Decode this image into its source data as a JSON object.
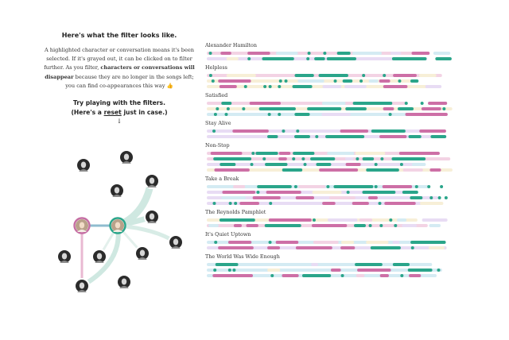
{
  "intro": {
    "heading": "Here's what the filter looks like.",
    "para_1": "A highlighted character or conversation means it's been selected. If it's grayed out, it can be clicked on to filter further. As you filter,",
    "para_bold": "characters or conversations will disappear",
    "para_2": "because they are no longer in the songs left; you can find co-appearances this way",
    "emoji": "👍",
    "try_line": "Try playing with the filters.",
    "reset_prefix": "(Here's a",
    "reset_link": "reset",
    "reset_suffix": "just in case.)",
    "arrow": "↓"
  },
  "colors": {
    "teal": "#2aa58a",
    "pink": "#cd6fa6",
    "light_blue": "#d4ebf3",
    "light_purple": "#e8dcf4",
    "light_pink": "#f3d3e4",
    "light_yellow": "#f7efd7",
    "node_border_selected_pink": "#c56ea3",
    "node_border_selected_teal": "#2aa58a"
  },
  "graph": {
    "nodes": [
      {
        "name": "character-node-1",
        "selected": false
      },
      {
        "name": "character-node-2",
        "selected": false
      },
      {
        "name": "character-node-3",
        "selected": false
      },
      {
        "name": "character-node-4",
        "selected": false
      },
      {
        "name": "character-node-5",
        "selected": "pink"
      },
      {
        "name": "character-node-6",
        "selected": "teal"
      },
      {
        "name": "character-node-7",
        "selected": false
      },
      {
        "name": "character-node-8",
        "selected": false
      },
      {
        "name": "character-node-9",
        "selected": false
      },
      {
        "name": "character-node-10",
        "selected": false
      },
      {
        "name": "character-node-11",
        "selected": false
      },
      {
        "name": "character-node-12",
        "selected": false
      },
      {
        "name": "character-node-13",
        "selected": false
      }
    ]
  },
  "songs": [
    {
      "title": "Alexander Hamilton"
    },
    {
      "title": "Helpless"
    },
    {
      "title": "Satisfied"
    },
    {
      "title": "Stay Alive"
    },
    {
      "title": "Non-Stop"
    },
    {
      "title": "Take a Break"
    },
    {
      "title": "The Reynolds Pamphlet"
    },
    {
      "title": "It's Quiet Uptown"
    },
    {
      "title": "The World Was Wide Enough"
    }
  ]
}
